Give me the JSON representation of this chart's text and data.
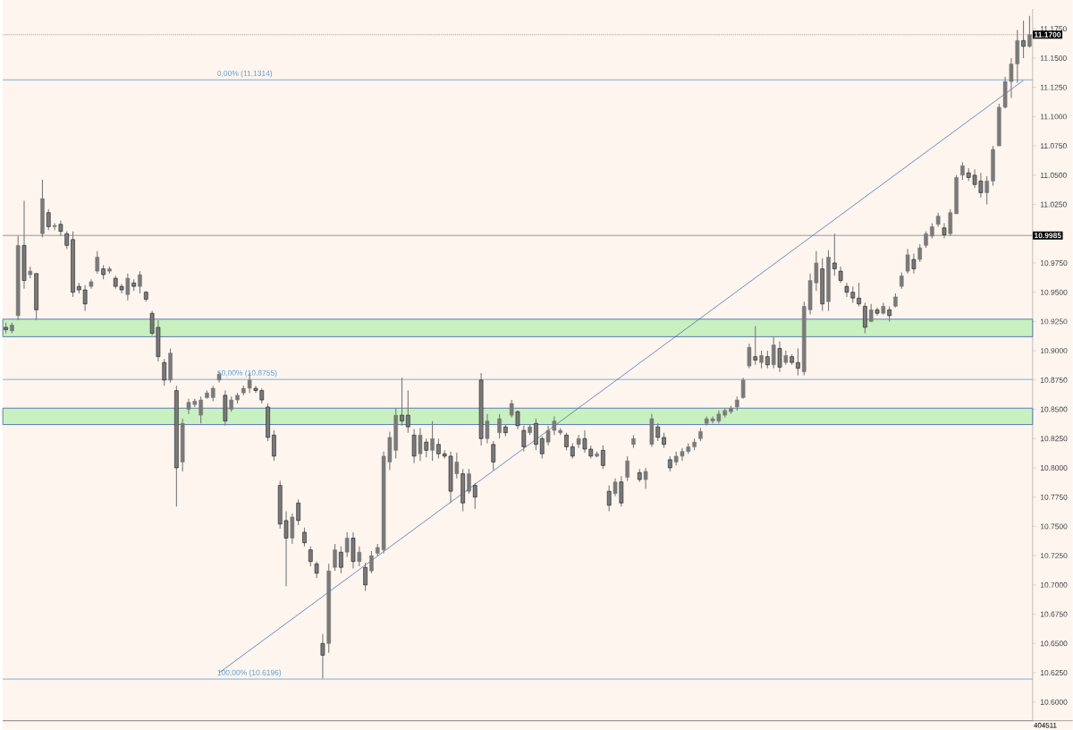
{
  "chart_data": {
    "type": "candlestick",
    "color": "#7a7a7a",
    "categories": [
      null,
      null,
      null,
      null,
      null,
      null,
      null,
      null,
      null,
      null,
      null,
      null,
      null,
      null,
      null,
      null,
      null,
      null,
      null,
      null,
      null,
      null,
      null,
      null,
      null,
      null,
      null,
      null,
      null,
      null,
      null,
      null,
      null,
      null,
      null,
      null,
      null,
      null,
      null,
      null,
      null,
      null,
      null,
      null,
      null,
      null,
      null,
      null,
      null,
      null,
      null,
      null,
      null,
      null,
      null,
      null,
      null,
      null,
      null,
      null,
      null,
      null,
      null,
      null,
      null,
      null,
      null,
      null,
      null,
      null,
      null,
      null,
      null,
      null,
      null,
      null,
      null,
      null,
      null,
      null,
      null,
      null,
      null,
      null,
      null,
      null,
      null,
      null,
      null,
      null,
      null,
      null,
      null,
      null,
      null,
      null,
      null,
      null,
      null,
      null,
      null,
      null,
      null,
      null,
      null,
      null,
      null,
      null,
      null,
      null,
      null,
      null,
      null,
      null,
      null,
      null,
      null,
      null,
      null,
      null,
      null,
      null,
      null,
      null,
      null,
      null,
      null,
      null,
      null,
      null,
      null,
      null,
      null,
      null,
      null,
      null,
      null,
      null,
      null,
      null,
      null,
      null,
      null,
      null,
      null,
      null,
      null,
      null,
      null,
      null,
      null,
      null,
      null,
      null,
      null,
      null,
      null,
      null,
      null,
      null,
      null,
      null,
      null,
      null,
      null,
      null,
      null,
      null,
      null
    ],
    "ohlc": [
      [
        10.92,
        10.924,
        10.915,
        10.918
      ],
      [
        10.917,
        10.924,
        10.915,
        10.922
      ],
      [
        10.93,
        10.998,
        10.926,
        10.99
      ],
      [
        10.99,
        11.028,
        10.953,
        10.96
      ],
      [
        10.965,
        10.972,
        10.962,
        10.968
      ],
      [
        10.966,
        10.966,
        10.926,
        10.935
      ],
      [
        11.0,
        11.046,
        10.997,
        11.03
      ],
      [
        11.018,
        11.021,
        11.003,
        11.006
      ],
      [
        11.006,
        11.009,
        11.003,
        11.007
      ],
      [
        11.008,
        11.011,
        10.998,
        11.002
      ],
      [
        11.0,
        11.002,
        10.987,
        10.99
      ],
      [
        10.995,
        11.002,
        10.946,
        10.95
      ],
      [
        10.955,
        10.958,
        10.949,
        10.952
      ],
      [
        10.952,
        10.956,
        10.934,
        10.94
      ],
      [
        10.955,
        10.961,
        10.953,
        10.959
      ],
      [
        10.968,
        10.985,
        10.966,
        10.98
      ],
      [
        10.97,
        10.973,
        10.961,
        10.965
      ],
      [
        10.968,
        10.972,
        10.966,
        10.97
      ],
      [
        10.962,
        10.964,
        10.953,
        10.955
      ],
      [
        10.955,
        10.957,
        10.949,
        10.952
      ],
      [
        10.948,
        10.966,
        10.943,
        10.962
      ],
      [
        10.958,
        10.961,
        10.951,
        10.955
      ],
      [
        10.955,
        10.968,
        10.949,
        10.965
      ],
      [
        10.95,
        10.951,
        10.942,
        10.944
      ],
      [
        10.932,
        10.934,
        10.913,
        10.915
      ],
      [
        10.92,
        10.926,
        10.891,
        10.895
      ],
      [
        10.89,
        10.893,
        10.87,
        10.875
      ],
      [
        10.875,
        10.902,
        10.873,
        10.898
      ],
      [
        10.866,
        10.87,
        10.767,
        10.8
      ],
      [
        10.805,
        10.842,
        10.797,
        10.838
      ],
      [
        10.85,
        10.859,
        10.846,
        10.856
      ],
      [
        10.854,
        10.859,
        10.852,
        10.857
      ],
      [
        10.845,
        10.861,
        10.838,
        10.858
      ],
      [
        10.86,
        10.866,
        10.859,
        10.864
      ],
      [
        10.86,
        10.87,
        10.857,
        10.868
      ],
      [
        10.875,
        10.882,
        10.873,
        10.88
      ],
      [
        10.862,
        10.866,
        10.836,
        10.84
      ],
      [
        10.85,
        10.861,
        10.848,
        10.858
      ],
      [
        10.858,
        10.864,
        10.855,
        10.862
      ],
      [
        10.864,
        10.87,
        10.862,
        10.868
      ],
      [
        10.868,
        10.881,
        10.864,
        10.875
      ],
      [
        10.868,
        10.87,
        10.864,
        10.866
      ],
      [
        10.866,
        10.868,
        10.855,
        10.858
      ],
      [
        10.852,
        10.855,
        10.823,
        10.826
      ],
      [
        10.828,
        10.832,
        10.806,
        10.81
      ],
      [
        10.785,
        10.789,
        10.748,
        10.752
      ],
      [
        10.755,
        10.763,
        10.699,
        10.74
      ],
      [
        10.74,
        10.761,
        10.735,
        10.758
      ],
      [
        10.77,
        10.773,
        10.751,
        10.755
      ],
      [
        10.745,
        10.749,
        10.733,
        10.736
      ],
      [
        10.73,
        10.733,
        10.716,
        10.72
      ],
      [
        10.718,
        10.72,
        10.706,
        10.71
      ],
      [
        10.65,
        10.658,
        10.62,
        10.64
      ],
      [
        10.65,
        10.718,
        10.642,
        10.712
      ],
      [
        10.715,
        10.735,
        10.712,
        10.73
      ],
      [
        10.728,
        10.733,
        10.71,
        10.715
      ],
      [
        10.728,
        10.745,
        10.724,
        10.74
      ],
      [
        10.74,
        10.745,
        10.714,
        10.72
      ],
      [
        10.72,
        10.733,
        10.716,
        10.728
      ],
      [
        10.715,
        10.719,
        10.695,
        10.7
      ],
      [
        10.712,
        10.729,
        10.71,
        10.725
      ],
      [
        10.727,
        10.735,
        10.725,
        10.732
      ],
      [
        10.73,
        10.814,
        10.727,
        10.81
      ],
      [
        10.805,
        10.831,
        10.798,
        10.826
      ],
      [
        10.815,
        10.851,
        10.808,
        10.845
      ],
      [
        10.845,
        10.877,
        10.836,
        10.84
      ],
      [
        10.845,
        10.866,
        10.83,
        10.835
      ],
      [
        10.828,
        10.833,
        10.804,
        10.81
      ],
      [
        10.812,
        10.834,
        10.806,
        10.828
      ],
      [
        10.822,
        10.825,
        10.809,
        10.815
      ],
      [
        10.815,
        10.84,
        10.806,
        10.825
      ],
      [
        10.82,
        10.825,
        10.808,
        10.812
      ],
      [
        10.812,
        10.815,
        10.808,
        10.81
      ],
      [
        10.81,
        10.814,
        10.77,
        10.78
      ],
      [
        10.795,
        10.813,
        10.791,
        10.805
      ],
      [
        10.795,
        10.799,
        10.763,
        10.77
      ],
      [
        10.78,
        10.799,
        10.778,
        10.795
      ],
      [
        10.785,
        10.787,
        10.765,
        10.775
      ],
      [
        10.875,
        10.881,
        10.819,
        10.825
      ],
      [
        10.825,
        10.846,
        10.821,
        10.84
      ],
      [
        10.82,
        10.823,
        10.798,
        10.805
      ],
      [
        10.83,
        10.846,
        10.825,
        10.842
      ],
      [
        10.835,
        10.837,
        10.827,
        10.83
      ],
      [
        10.845,
        10.858,
        10.843,
        10.855
      ],
      [
        10.848,
        10.849,
        10.833,
        10.836
      ],
      [
        10.832,
        10.836,
        10.814,
        10.818
      ],
      [
        10.83,
        10.837,
        10.828,
        10.835
      ],
      [
        10.838,
        10.842,
        10.815,
        10.82
      ],
      [
        10.825,
        10.827,
        10.808,
        10.812
      ],
      [
        10.822,
        10.836,
        10.819,
        10.832
      ],
      [
        10.832,
        10.844,
        10.828,
        10.84
      ],
      [
        10.83,
        10.834,
        10.828,
        10.832
      ],
      [
        10.828,
        10.83,
        10.815,
        10.818
      ],
      [
        10.818,
        10.821,
        10.808,
        10.81
      ],
      [
        10.82,
        10.828,
        10.817,
        10.825
      ],
      [
        10.825,
        10.832,
        10.813,
        10.816
      ],
      [
        10.816,
        10.819,
        10.808,
        10.81
      ],
      [
        10.81,
        10.814,
        10.809,
        10.812
      ],
      [
        10.815,
        10.819,
        10.799,
        10.802
      ],
      [
        10.78,
        10.785,
        10.763,
        10.768
      ],
      [
        10.778,
        10.791,
        10.776,
        10.788
      ],
      [
        10.788,
        10.793,
        10.767,
        10.77
      ],
      [
        10.792,
        10.81,
        10.789,
        10.806
      ],
      [
        10.82,
        10.828,
        10.817,
        10.825
      ],
      [
        10.796,
        10.799,
        10.788,
        10.79
      ],
      [
        10.79,
        10.8,
        10.782,
        10.797
      ],
      [
        10.82,
        10.846,
        10.818,
        10.842
      ],
      [
        10.835,
        10.838,
        10.823,
        10.826
      ],
      [
        10.826,
        10.83,
        10.817,
        10.82
      ],
      [
        10.807,
        10.81,
        10.797,
        10.8
      ],
      [
        10.805,
        10.814,
        10.802,
        10.81
      ],
      [
        10.81,
        10.817,
        10.806,
        10.814
      ],
      [
        10.814,
        10.821,
        10.812,
        10.818
      ],
      [
        10.818,
        10.825,
        10.815,
        10.822
      ],
      [
        10.825,
        10.834,
        10.823,
        10.831
      ],
      [
        10.838,
        10.844,
        10.836,
        10.842
      ],
      [
        10.84,
        10.844,
        10.838,
        10.842
      ],
      [
        10.84,
        10.849,
        10.838,
        10.846
      ],
      [
        10.845,
        10.851,
        10.843,
        10.849
      ],
      [
        10.848,
        10.853,
        10.846,
        10.851
      ],
      [
        10.852,
        10.861,
        10.849,
        10.858
      ],
      [
        10.86,
        10.877,
        10.859,
        10.875
      ],
      [
        10.887,
        10.906,
        10.885,
        10.903
      ],
      [
        10.895,
        10.921,
        10.888,
        10.892
      ],
      [
        10.89,
        10.9,
        10.885,
        10.896
      ],
      [
        10.895,
        10.9,
        10.885,
        10.888
      ],
      [
        10.888,
        10.912,
        10.885,
        10.905
      ],
      [
        10.902,
        10.908,
        10.882,
        10.886
      ],
      [
        10.89,
        10.9,
        10.888,
        10.896
      ],
      [
        10.895,
        10.897,
        10.888,
        10.89
      ],
      [
        10.89,
        10.902,
        10.879,
        10.885
      ],
      [
        10.882,
        10.942,
        10.879,
        10.938
      ],
      [
        10.935,
        10.966,
        10.931,
        10.96
      ],
      [
        10.958,
        10.985,
        10.951,
        10.975
      ],
      [
        10.97,
        10.979,
        10.934,
        10.94
      ],
      [
        10.942,
        10.986,
        10.934,
        10.98
      ],
      [
        10.975,
        11.0,
        10.964,
        10.97
      ],
      [
        10.968,
        10.972,
        10.958,
        10.96
      ],
      [
        10.955,
        10.958,
        10.946,
        10.95
      ],
      [
        10.95,
        10.955,
        10.941,
        10.945
      ],
      [
        10.945,
        10.958,
        10.938,
        10.94
      ],
      [
        10.938,
        10.941,
        10.915,
        10.92
      ],
      [
        10.925,
        10.94,
        10.925,
        10.935
      ],
      [
        10.935,
        10.937,
        10.93,
        10.932
      ],
      [
        10.932,
        10.941,
        10.931,
        10.938
      ],
      [
        10.935,
        10.938,
        10.925,
        10.93
      ],
      [
        10.938,
        10.949,
        10.937,
        10.946
      ],
      [
        10.955,
        10.967,
        10.953,
        10.964
      ],
      [
        10.968,
        10.987,
        10.966,
        10.982
      ],
      [
        10.978,
        10.983,
        10.966,
        10.97
      ],
      [
        10.978,
        10.991,
        10.976,
        10.988
      ],
      [
        10.99,
        11.002,
        10.988,
        11.0
      ],
      [
        10.998,
        11.009,
        10.996,
        11.006
      ],
      [
        11.008,
        11.018,
        11.006,
        11.015
      ],
      [
        11.005,
        11.009,
        10.996,
        10.999
      ],
      [
        11.0,
        11.021,
        10.998,
        11.018
      ],
      [
        11.017,
        11.05,
        11.017,
        11.048
      ],
      [
        11.05,
        11.061,
        11.046,
        11.058
      ],
      [
        11.052,
        11.056,
        11.045,
        11.048
      ],
      [
        11.05,
        11.055,
        11.039,
        11.042
      ],
      [
        11.045,
        11.052,
        11.031,
        11.035
      ],
      [
        11.035,
        11.049,
        11.025,
        11.045
      ],
      [
        11.045,
        11.075,
        11.041,
        11.072
      ],
      [
        11.075,
        11.111,
        11.075,
        11.108
      ],
      [
        11.108,
        11.134,
        11.107,
        11.13
      ],
      [
        11.13,
        11.15,
        11.116,
        11.145
      ],
      [
        11.145,
        11.174,
        11.129,
        11.165
      ],
      [
        11.165,
        11.182,
        11.15,
        11.16
      ],
      [
        11.16,
        11.186,
        11.159,
        11.17
      ]
    ],
    "series": [
      {
        "type": "line",
        "color": "#3a5fa8",
        "values": [
          null,
          null,
          null,
          null,
          null,
          null,
          null,
          null,
          null,
          null,
          null,
          null,
          null,
          null,
          null,
          null,
          null,
          null,
          null,
          null,
          null,
          null,
          null,
          null,
          null,
          null,
          null,
          null,
          null,
          null,
          null,
          null,
          null,
          null,
          null,
          10.625,
          null,
          null,
          null,
          null,
          null,
          null,
          null,
          null,
          null,
          null,
          null,
          null,
          null,
          null,
          null,
          null,
          null,
          null,
          null,
          null,
          null,
          null,
          null,
          null,
          null,
          null,
          null,
          null,
          null,
          null,
          null,
          null,
          null,
          null,
          null,
          null,
          null,
          null,
          null,
          null,
          null,
          null,
          null,
          null,
          null,
          null,
          null,
          null,
          null,
          null,
          null,
          null,
          null,
          null,
          null,
          null,
          null,
          null,
          null,
          null,
          null,
          null,
          null,
          null,
          null,
          null,
          null,
          null,
          null,
          null,
          null,
          null,
          null,
          null,
          null,
          null,
          null,
          null,
          null,
          null,
          null,
          null,
          null,
          null,
          null,
          null,
          null,
          null,
          null,
          null,
          null,
          null,
          null,
          null,
          null,
          null,
          null,
          null,
          null,
          null,
          null,
          null,
          null,
          null,
          null,
          null,
          null,
          null,
          null,
          null,
          null,
          null,
          null,
          null,
          null,
          null,
          null,
          null,
          null,
          null,
          null,
          null,
          null,
          null,
          null,
          null,
          null,
          null,
          null,
          null,
          null,
          11.131,
          null
        ]
      }
    ],
    "ylim": [
      10.584,
      11.192
    ],
    "yticks": [
      {
        "value": 10.6,
        "label": "10.6000"
      },
      {
        "value": 10.625,
        "label": "10.6250"
      },
      {
        "value": 10.65,
        "label": "10.6500"
      },
      {
        "value": 10.675,
        "label": "10.6750"
      },
      {
        "value": 10.7,
        "label": "10.7000"
      },
      {
        "value": 10.725,
        "label": "10.7250"
      },
      {
        "value": 10.75,
        "label": "10.7500"
      },
      {
        "value": 10.775,
        "label": "10.7750"
      },
      {
        "value": 10.8,
        "label": "10.8000"
      },
      {
        "value": 10.825,
        "label": "10.8250"
      },
      {
        "value": 10.85,
        "label": "10.8500"
      },
      {
        "value": 10.875,
        "label": "10.8750"
      },
      {
        "value": 10.9,
        "label": "10.9000"
      },
      {
        "value": 10.925,
        "label": "10.9250"
      },
      {
        "value": 10.95,
        "label": "10.9500"
      },
      {
        "value": 10.975,
        "label": "10.9750"
      },
      {
        "value": 11.0,
        "label": null
      },
      {
        "value": 11.025,
        "label": "11.0250"
      },
      {
        "value": 11.05,
        "label": "11.0500"
      },
      {
        "value": 11.075,
        "label": "11.0750"
      },
      {
        "value": 11.1,
        "label": "11.1000"
      },
      {
        "value": 11.125,
        "label": "11.1250"
      },
      {
        "value": 11.15,
        "label": "11.1500"
      },
      {
        "value": 11.175,
        "label": "11.1750"
      }
    ],
    "tick_labels": "y",
    "ref_lines": [
      {
        "axis": "y",
        "value": 11.17,
        "label": "11.1700",
        "color": "#808080",
        "line_style": "dotted"
      },
      {
        "axis": "y",
        "value": 10.9985,
        "label": "10.9985",
        "color": "#808080",
        "line_style": "solid"
      },
      {
        "axis": "y",
        "value": 11.1314,
        "label": "0,00% (11.1314)",
        "color": "#5a9fd6"
      },
      {
        "axis": "y",
        "value": 10.8755,
        "label": "50,00% (10.8755)",
        "color": "#5a9fd6"
      },
      {
        "axis": "y",
        "value": 10.6196,
        "label": "100,00% (10.6196)",
        "color": "#5a9fd6"
      }
    ],
    "bands": [
      {
        "axis": "y",
        "from": 10.912,
        "to": 10.927,
        "color": "#c8f0c0"
      },
      {
        "axis": "y",
        "from": 10.837,
        "to": 10.851,
        "color": "#c8f0c0"
      }
    ],
    "annotations": [
      "404511"
    ]
  }
}
